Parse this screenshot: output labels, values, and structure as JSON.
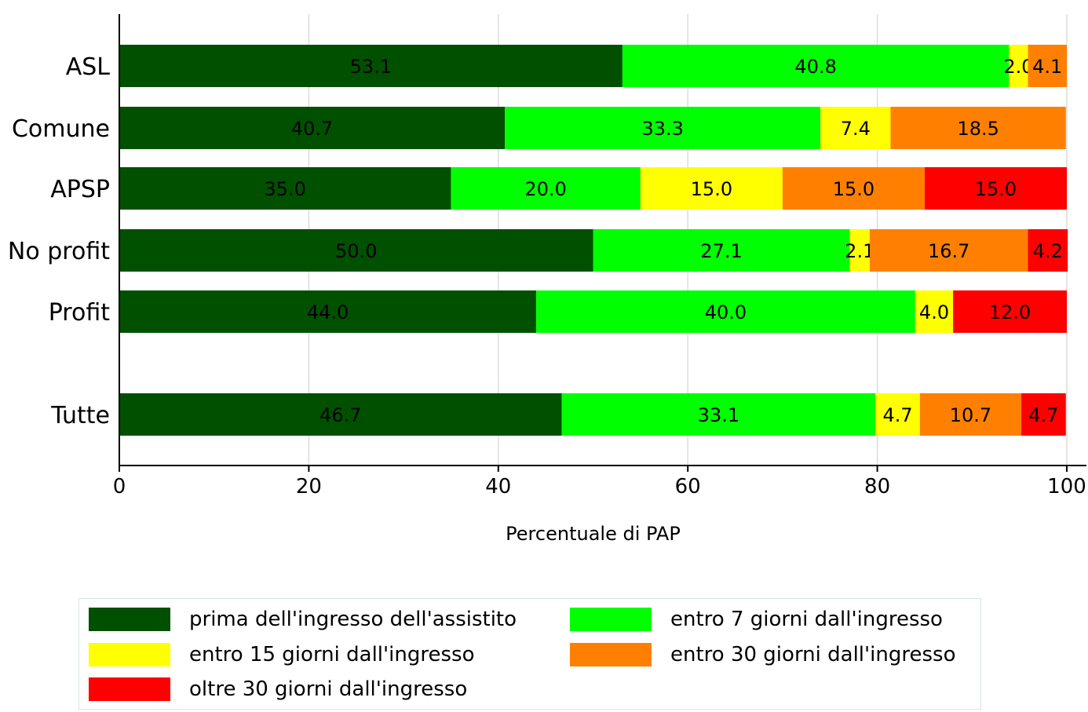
{
  "chart_data": {
    "type": "bar",
    "orientation": "horizontal",
    "stacked": true,
    "categories": [
      "ASL",
      "Comune",
      "APSP",
      "No profit",
      "Profit",
      "Tutte"
    ],
    "series": [
      {
        "name": "prima dell'ingresso dell'assistito",
        "color": "#005000",
        "values": [
          53.1,
          40.7,
          35.0,
          50.0,
          44.0,
          46.7
        ],
        "labels": [
          "53.1",
          "40.7",
          "35.0",
          "50.0",
          "44.0",
          "46.7"
        ]
      },
      {
        "name": "entro 7 giorni dall'ingresso",
        "color": "#00ff00",
        "values": [
          40.8,
          33.3,
          20.0,
          27.1,
          40.0,
          33.1
        ],
        "labels": [
          "40.8",
          "33.3",
          "20.0",
          "27.1",
          "40.0",
          "33.1"
        ]
      },
      {
        "name": "entro 15 giorni dall'ingresso",
        "color": "#ffff00",
        "values": [
          2.0,
          7.4,
          15.0,
          2.1,
          4.0,
          4.7
        ],
        "labels": [
          "2.0",
          "7.4",
          "15.0",
          "2.1",
          "4.0",
          "4.7"
        ]
      },
      {
        "name": "entro 30 giorni dall'ingresso",
        "color": "#ff8000",
        "values": [
          4.1,
          18.5,
          15.0,
          16.7,
          0,
          10.7
        ],
        "labels": [
          "4.1",
          "18.5",
          "15.0",
          "16.7",
          "",
          "10.7"
        ]
      },
      {
        "name": "oltre 30 giorni dall'ingresso",
        "color": "#ff0000",
        "values": [
          0,
          0,
          15.0,
          4.2,
          12.0,
          4.7
        ],
        "labels": [
          "",
          "",
          "15.0",
          "4.2",
          "12.0",
          "4.7"
        ]
      }
    ],
    "xlabel": "Percentuale di PAP",
    "ylabel": "",
    "xlim": [
      0,
      100
    ],
    "xticks": [
      "0",
      "20",
      "40",
      "60",
      "80",
      "100"
    ],
    "grid": true,
    "legend_position": "bottom"
  }
}
